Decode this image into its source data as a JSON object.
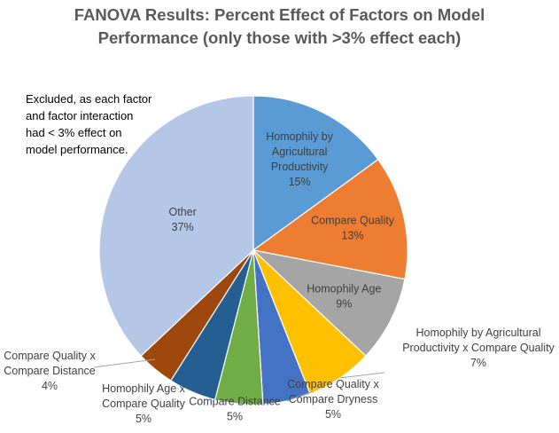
{
  "chart_data": {
    "type": "pie",
    "title_lines": [
      "FANOVA Results: Percent Effect of Factors on Model",
      "Performance (only those with >3% effect each)"
    ],
    "annotation_lines": [
      "Excluded, as each factor",
      "and factor interaction",
      "had < 3% effect on",
      "model performance."
    ],
    "slices": [
      {
        "label_lines": [
          "Homophily by",
          "Agricultural",
          "Productivity"
        ],
        "value": 15,
        "value_label": "15%",
        "color": "#5b9bd5"
      },
      {
        "label_lines": [
          "Compare Quality"
        ],
        "value": 13,
        "value_label": "13%",
        "color": "#ed7d31"
      },
      {
        "label_lines": [
          "Homophily Age"
        ],
        "value": 9,
        "value_label": "9%",
        "color": "#a5a5a5"
      },
      {
        "label_lines": [
          "Homophily by Agricultural",
          "Productivity x Compare Quality"
        ],
        "value": 7,
        "value_label": "7%",
        "color": "#ffc000"
      },
      {
        "label_lines": [
          "Compare Quality x",
          "Compare Dryness"
        ],
        "value": 5,
        "value_label": "5%",
        "color": "#4472c4"
      },
      {
        "label_lines": [
          "Compare Distance"
        ],
        "value": 5,
        "value_label": "5%",
        "color": "#70ad47"
      },
      {
        "label_lines": [
          "Homophily Age x",
          "Compare Quality"
        ],
        "value": 5,
        "value_label": "5%",
        "color": "#255e91"
      },
      {
        "label_lines": [
          "Compare Quality x",
          "Compare Distance"
        ],
        "value": 4,
        "value_label": "4%",
        "color": "#9e480e"
      },
      {
        "label_lines": [
          "Other"
        ],
        "value": 37,
        "value_label": "37%",
        "color": "#b4c7e7"
      }
    ]
  }
}
